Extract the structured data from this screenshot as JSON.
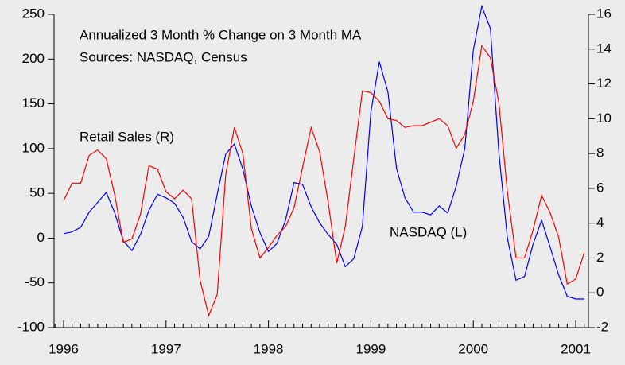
{
  "chart_data": {
    "type": "line",
    "annotations": [
      "Annualized 3 Month % Change on 3 Month MA",
      "Sources: NASDAQ, Census",
      "Retail Sales (R)",
      "NASDAQ (L)"
    ],
    "x": [
      1996,
      1996.083,
      1996.167,
      1996.25,
      1996.333,
      1996.417,
      1996.5,
      1996.583,
      1996.667,
      1996.75,
      1996.833,
      1996.917,
      1997,
      1997.083,
      1997.167,
      1997.25,
      1997.333,
      1997.417,
      1997.5,
      1997.583,
      1997.667,
      1997.75,
      1997.833,
      1997.917,
      1998,
      1998.083,
      1998.167,
      1998.25,
      1998.333,
      1998.417,
      1998.5,
      1998.583,
      1998.667,
      1998.75,
      1998.833,
      1998.917,
      1999,
      1999.083,
      1999.167,
      1999.25,
      1999.333,
      1999.417,
      1999.5,
      1999.583,
      1999.667,
      1999.75,
      1999.833,
      1999.917,
      2000,
      2000.083,
      2000.167,
      2000.25,
      2000.333,
      2000.417,
      2000.5,
      2000.583,
      2000.667,
      2000.75,
      2000.833,
      2000.917,
      2001,
      2001.083
    ],
    "series": [
      {
        "name": "NASDAQ (L)",
        "color": "#0000ff",
        "values": [
          5,
          7,
          12,
          29,
          40,
          51,
          28,
          -3,
          -14,
          4,
          31,
          49,
          45,
          39,
          23,
          -4,
          -12,
          2,
          49,
          94,
          105,
          77,
          36,
          6,
          -15,
          -6,
          20,
          62,
          60,
          35,
          17,
          4,
          -7,
          -32,
          -23,
          13,
          141,
          197,
          163,
          78,
          45,
          29,
          29,
          26,
          36,
          28,
          58,
          100,
          210,
          259,
          234,
          95,
          0,
          -47,
          -43,
          -7,
          20,
          -10,
          -41,
          -65,
          -68,
          -68
        ]
      },
      {
        "name": "Retail Sales (R)",
        "color": "#ff0000",
        "axis": "y2",
        "values": [
          5.3,
          6.3,
          6.3,
          7.9,
          8.2,
          7.7,
          5.6,
          2.9,
          3.1,
          4.5,
          7.3,
          7.1,
          5.8,
          5.4,
          5.9,
          5.4,
          0.7,
          -1.3,
          -0.1,
          6.8,
          9.5,
          8.0,
          3.7,
          2.0,
          2.6,
          3.3,
          3.8,
          4.9,
          7.2,
          9.5,
          8.1,
          5.2,
          1.7,
          3.8,
          7.7,
          11.6,
          11.5,
          11.0,
          10.0,
          9.9,
          9.5,
          9.6,
          9.6,
          9.8,
          10.0,
          9.6,
          8.3,
          9.1,
          11.0,
          14.2,
          13.5,
          10.9,
          5.8,
          2.0,
          2.0,
          3.6,
          5.6,
          4.6,
          3.2,
          0.5,
          0.8,
          2.3
        ]
      }
    ],
    "xlim": [
      1995.907,
      2001.124
    ],
    "xticks": [
      1996,
      1997,
      1998,
      1999,
      2000,
      2001
    ],
    "ylim": [
      -100,
      250
    ],
    "yticks": [
      -100,
      -50,
      0,
      50,
      100,
      150,
      200,
      250
    ],
    "y2lim": [
      -2,
      16
    ],
    "y2ticks": [
      -2,
      0,
      2,
      4,
      6,
      8,
      10,
      12,
      14,
      16
    ],
    "grid": false
  }
}
